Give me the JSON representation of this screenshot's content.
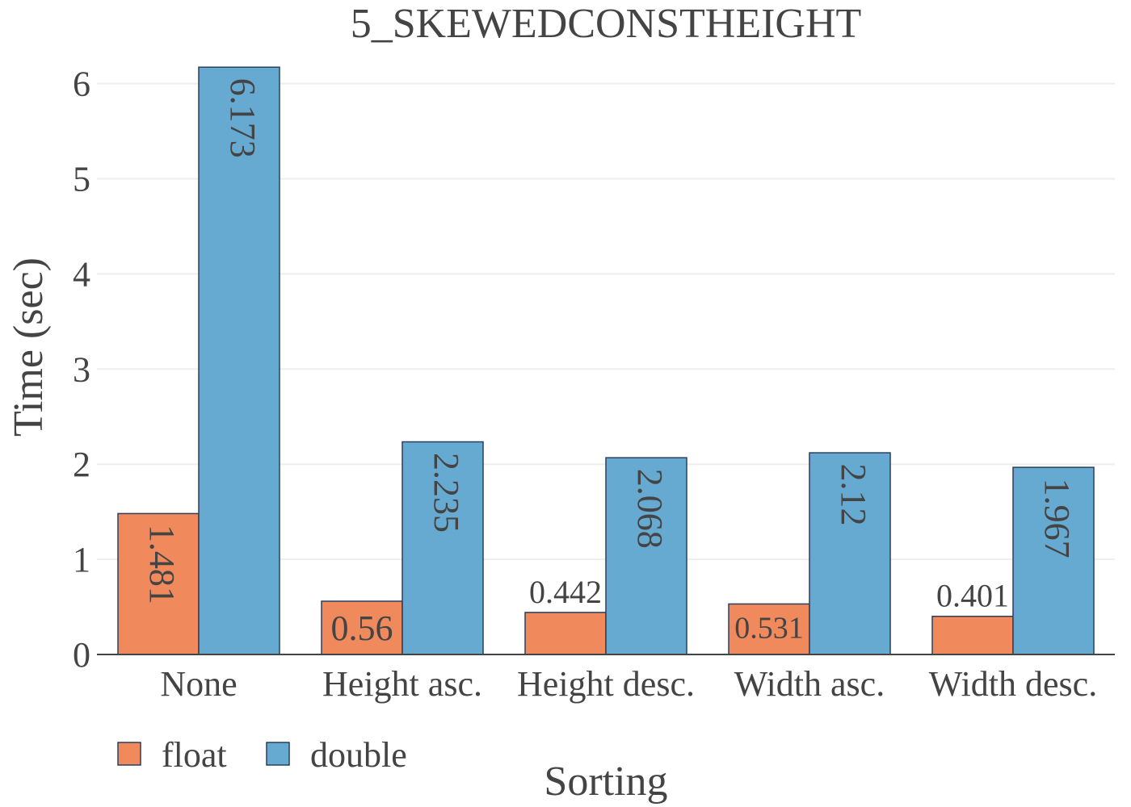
{
  "chart_data": {
    "type": "bar",
    "title": "5_SKEWEDCONSTHEIGHT",
    "xlabel": "Sorting",
    "ylabel": "Time (sec)",
    "categories": [
      "None",
      "Height asc.",
      "Height desc.",
      "Width asc.",
      "Width desc."
    ],
    "series": [
      {
        "name": "float",
        "color": "#f08a5d",
        "values": [
          1.481,
          0.56,
          0.442,
          0.531,
          0.401
        ],
        "labels": [
          "1.481",
          "0.56",
          "0.442",
          "0.531",
          "0.401"
        ]
      },
      {
        "name": "double",
        "color": "#66a9d1",
        "values": [
          6.173,
          2.235,
          2.068,
          2.12,
          1.967
        ],
        "labels": [
          "6.173",
          "2.235",
          "2.068",
          "2.12",
          "1.967"
        ]
      }
    ],
    "yticks": [
      "0",
      "1",
      "2",
      "3",
      "4",
      "5",
      "6"
    ],
    "ylim": [
      0,
      6.37
    ],
    "grid": true,
    "legend": "bottom-left",
    "bar_outline_color": "#2a3f5f"
  }
}
